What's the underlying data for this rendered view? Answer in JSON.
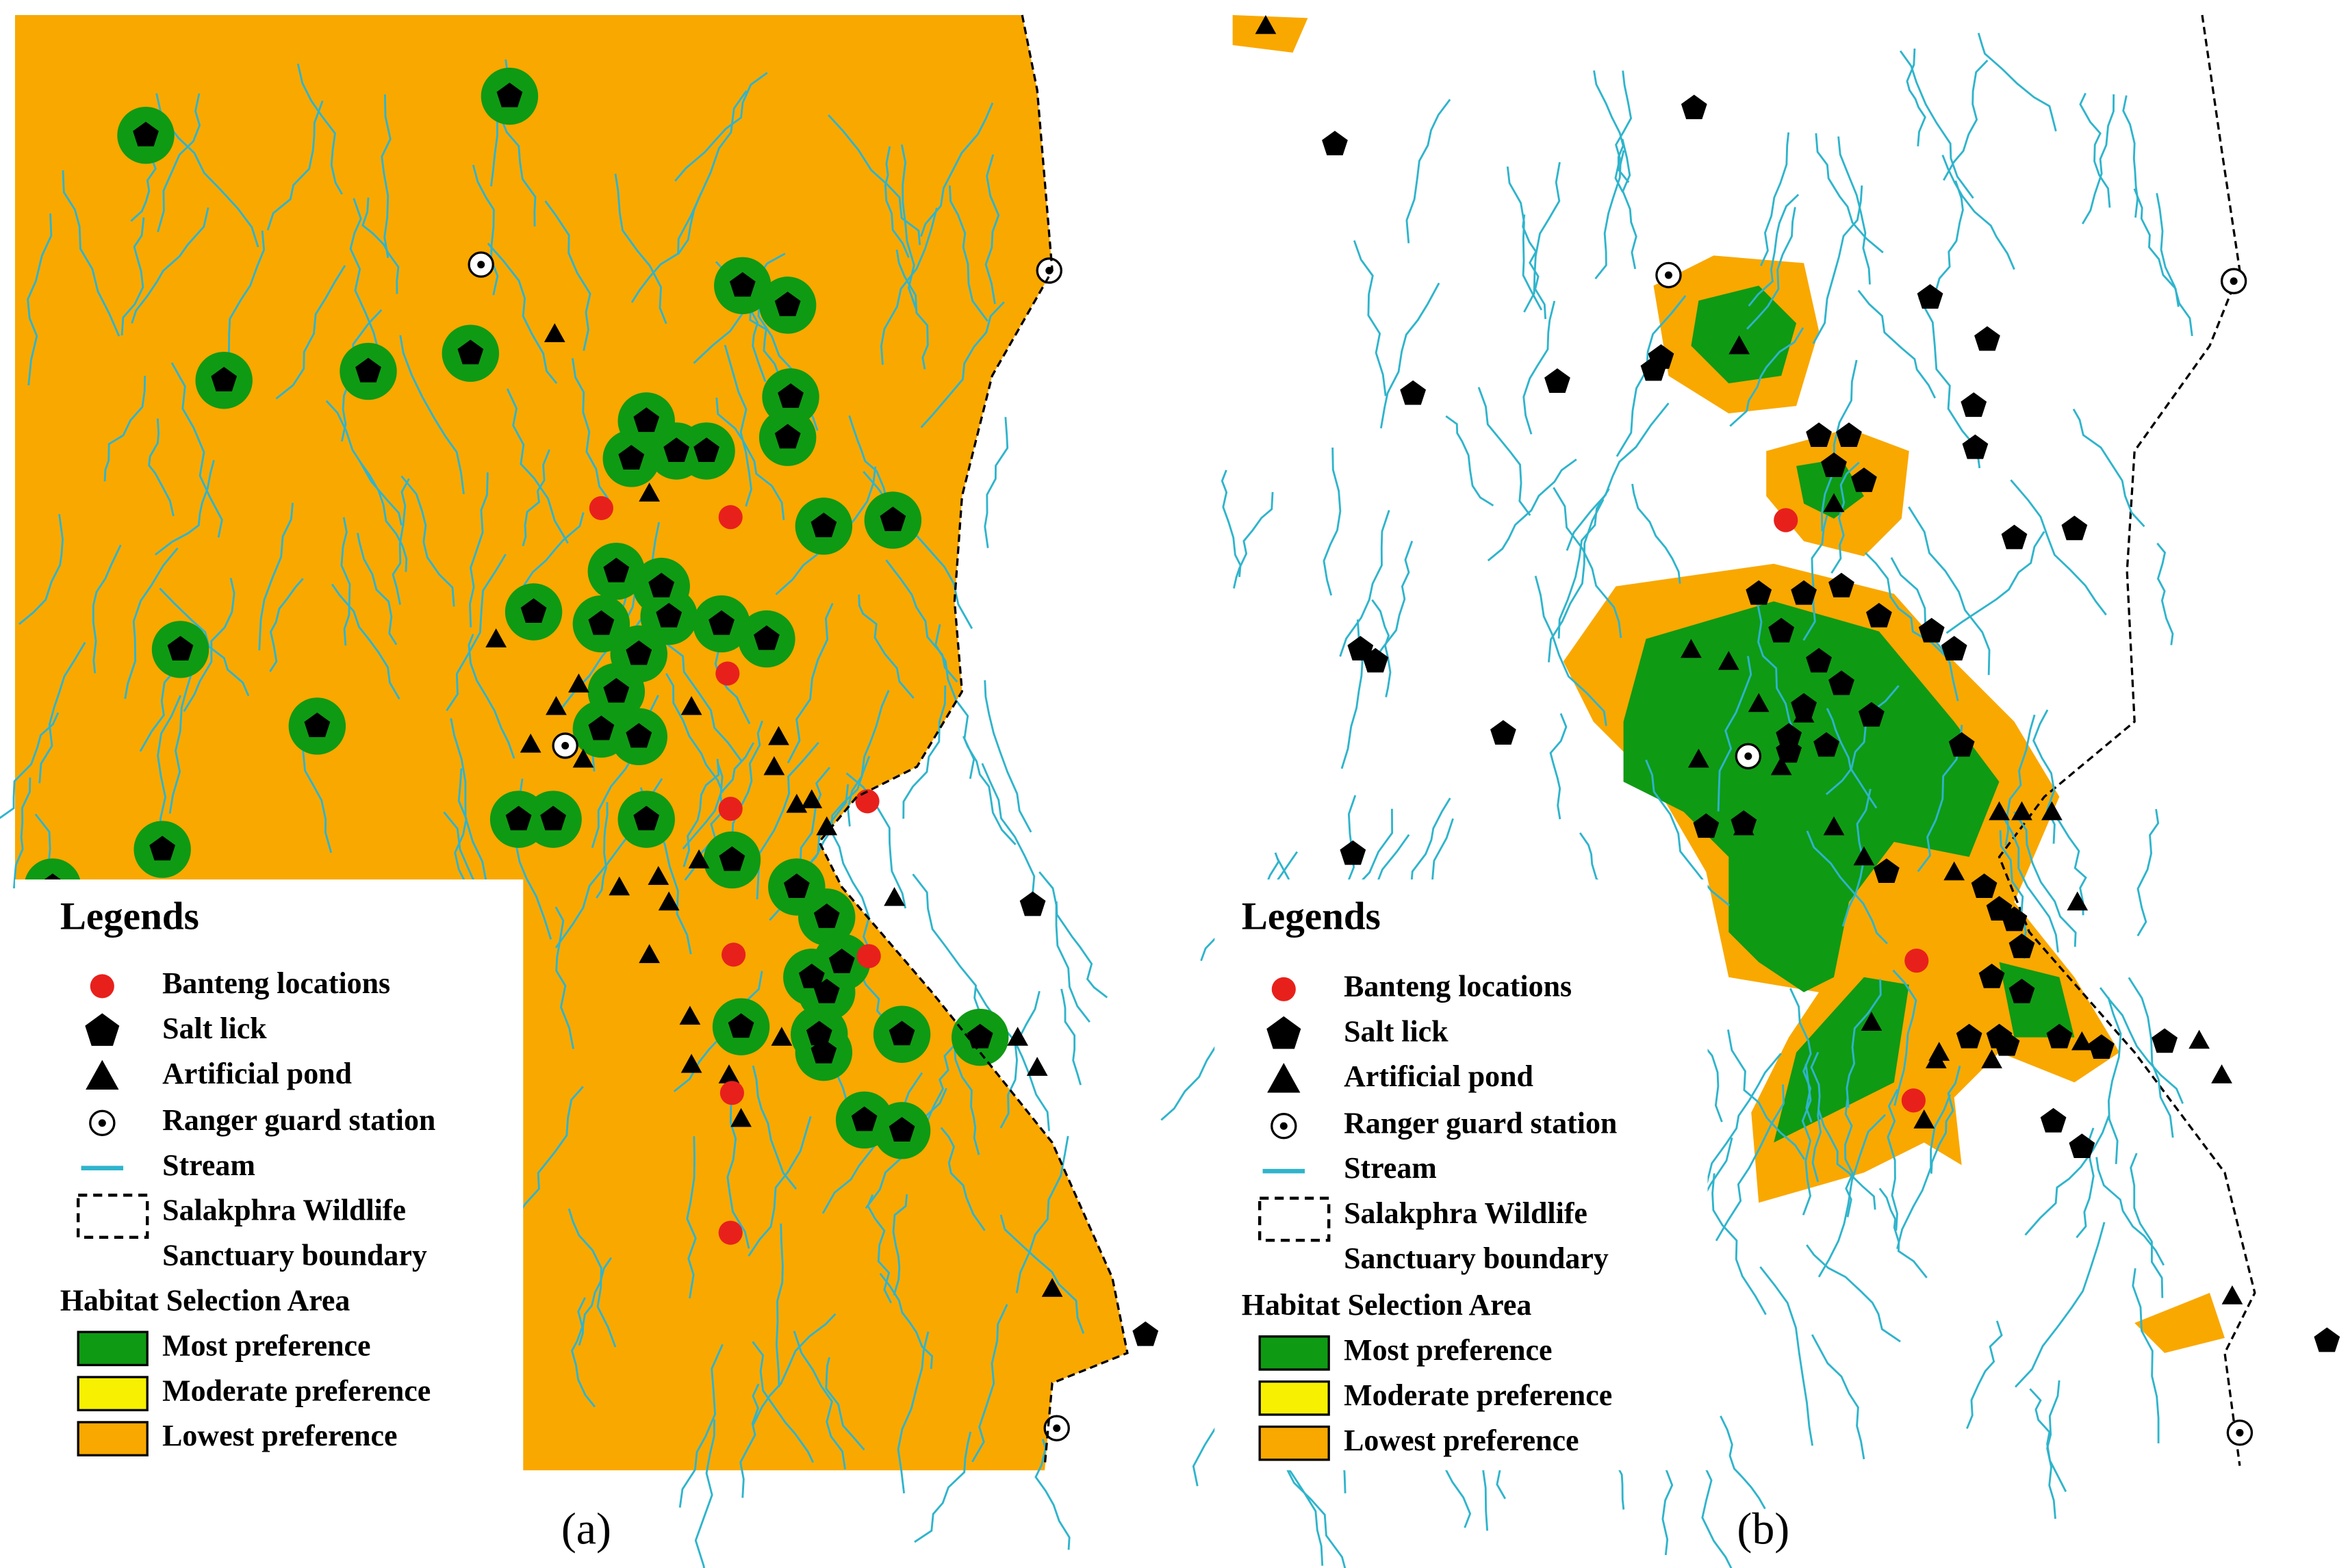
{
  "panels": [
    {
      "caption": "(a)",
      "legend": {
        "title": "Legends",
        "items": [
          "Banteng locations",
          "Salt lick",
          "Artificial pond",
          "Ranger guard station",
          "Stream"
        ],
        "boundary_lines": [
          "Salakphra Wildlife",
          "Sanctuary boundary"
        ],
        "habitat_title": "Habitat Selection Area",
        "habitat_items": [
          "Most preference",
          "Moderate preference",
          "Lowest preference"
        ]
      }
    },
    {
      "caption": "(b)",
      "legend": {
        "title": "Legends",
        "items": [
          "Banteng locations",
          "Salt lick",
          "Artificial pond",
          "Ranger guard station",
          "Stream"
        ],
        "boundary_lines": [
          "Salakphra Wildlife",
          "Sanctuary boundary"
        ],
        "habitat_title": "Habitat Selection Area",
        "habitat_items": [
          "Most preference",
          "Moderate preference",
          "Lowest preference"
        ]
      }
    }
  ]
}
